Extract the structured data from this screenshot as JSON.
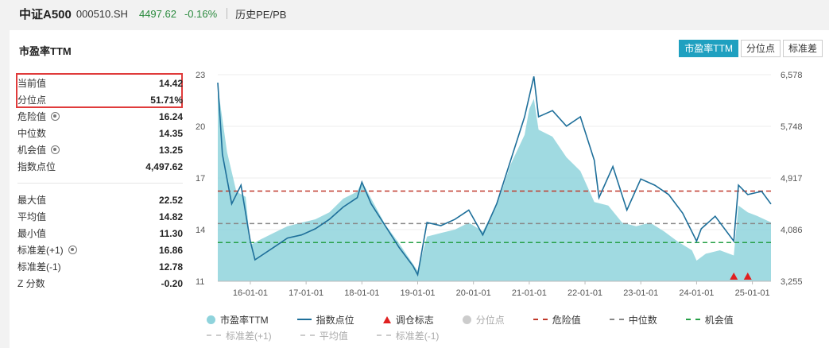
{
  "header": {
    "name": "中证A500",
    "code": "000510.SH",
    "price": "4497.62",
    "change": "-0.16%",
    "link": "历史PE/PB"
  },
  "card": {
    "title": "市盈率TTM",
    "tabs": [
      {
        "label": "市盈率TTM",
        "active": true
      },
      {
        "label": "分位点",
        "active": false
      },
      {
        "label": "标准差",
        "active": false
      }
    ]
  },
  "stats_top": [
    {
      "label": "当前值",
      "value": "14.42",
      "gear": false
    },
    {
      "label": "分位点",
      "value": "51.71%",
      "gear": false
    },
    {
      "label": "危险值",
      "value": "16.24",
      "gear": true
    },
    {
      "label": "中位数",
      "value": "14.35",
      "gear": false
    },
    {
      "label": "机会值",
      "value": "13.25",
      "gear": true
    },
    {
      "label": "指数点位",
      "value": "4,497.62",
      "gear": false
    }
  ],
  "stats_bottom": [
    {
      "label": "最大值",
      "value": "22.52",
      "gear": false
    },
    {
      "label": "平均值",
      "value": "14.82",
      "gear": false
    },
    {
      "label": "最小值",
      "value": "11.30",
      "gear": false
    },
    {
      "label": "标准差(+1)",
      "value": "16.86",
      "gear": true
    },
    {
      "label": "标准差(-1)",
      "value": "12.78",
      "gear": false
    },
    {
      "label": "Z 分数",
      "value": "-0.20",
      "gear": false
    }
  ],
  "colors": {
    "area": "#8fd3dc",
    "index_line": "#1e6f9a",
    "danger": "#c0392b",
    "median": "#888888",
    "opportunity": "#27a048",
    "marker": "#e02020"
  },
  "chart_data": {
    "type": "area",
    "x_ticks": [
      "16-01-01",
      "17-01-01",
      "18-01-01",
      "19-01-01",
      "20-01-01",
      "21-01-01",
      "22-01-01",
      "23-01-01",
      "24-01-01",
      "25-01-01"
    ],
    "y_left_ticks": [
      "23",
      "20",
      "17",
      "14",
      "11"
    ],
    "y_right_ticks": [
      "6,578",
      "5,748",
      "4,917",
      "4,086",
      "3,255"
    ],
    "y_left_range": [
      11,
      23
    ],
    "y_right_range": [
      3255,
      6578
    ],
    "x_range": [
      "2015-06",
      "2025-05"
    ],
    "danger_value": 16.24,
    "median_value": 14.35,
    "opportunity_value": 13.25,
    "pe_series": [
      [
        "2015-06",
        22.3
      ],
      [
        "2015-08",
        18.5
      ],
      [
        "2015-10",
        16.2
      ],
      [
        "2015-12",
        15.9
      ],
      [
        "2016-01",
        13.1
      ],
      [
        "2016-03",
        13.4
      ],
      [
        "2016-06",
        13.8
      ],
      [
        "2016-09",
        14.2
      ],
      [
        "2016-12",
        14.4
      ],
      [
        "2017-03",
        14.6
      ],
      [
        "2017-06",
        15.0
      ],
      [
        "2017-09",
        15.8
      ],
      [
        "2017-12",
        16.2
      ],
      [
        "2018-01",
        16.8
      ],
      [
        "2018-03",
        15.8
      ],
      [
        "2018-06",
        14.3
      ],
      [
        "2018-09",
        13.2
      ],
      [
        "2018-12",
        12.0
      ],
      [
        "2019-01",
        11.6
      ],
      [
        "2019-03",
        13.6
      ],
      [
        "2019-06",
        13.8
      ],
      [
        "2019-09",
        14.0
      ],
      [
        "2019-12",
        14.4
      ],
      [
        "2020-03",
        13.9
      ],
      [
        "2020-06",
        15.4
      ],
      [
        "2020-09",
        17.8
      ],
      [
        "2020-12",
        19.5
      ],
      [
        "2021-01",
        21.0
      ],
      [
        "2021-02",
        21.6
      ],
      [
        "2021-03",
        19.8
      ],
      [
        "2021-06",
        19.4
      ],
      [
        "2021-09",
        18.2
      ],
      [
        "2021-12",
        17.4
      ],
      [
        "2022-03",
        15.6
      ],
      [
        "2022-06",
        15.4
      ],
      [
        "2022-09",
        14.4
      ],
      [
        "2022-12",
        14.2
      ],
      [
        "2023-03",
        14.4
      ],
      [
        "2023-06",
        13.9
      ],
      [
        "2023-09",
        13.3
      ],
      [
        "2023-12",
        12.8
      ],
      [
        "2024-01",
        12.2
      ],
      [
        "2024-03",
        12.6
      ],
      [
        "2024-06",
        12.8
      ],
      [
        "2024-09",
        12.5
      ],
      [
        "2024-10",
        15.4
      ],
      [
        "2024-12",
        15.0
      ],
      [
        "2025-02",
        14.8
      ],
      [
        "2025-05",
        14.42
      ]
    ],
    "index_series": [
      [
        "2015-06",
        6450
      ],
      [
        "2015-07",
        5300
      ],
      [
        "2015-09",
        4500
      ],
      [
        "2015-11",
        4800
      ],
      [
        "2016-01",
        3900
      ],
      [
        "2016-02",
        3600
      ],
      [
        "2016-06",
        3800
      ],
      [
        "2016-09",
        3950
      ],
      [
        "2016-12",
        4000
      ],
      [
        "2017-03",
        4100
      ],
      [
        "2017-06",
        4250
      ],
      [
        "2017-09",
        4450
      ],
      [
        "2017-12",
        4600
      ],
      [
        "2018-01",
        4850
      ],
      [
        "2018-03",
        4500
      ],
      [
        "2018-06",
        4150
      ],
      [
        "2018-09",
        3800
      ],
      [
        "2018-12",
        3500
      ],
      [
        "2019-01",
        3360
      ],
      [
        "2019-03",
        4200
      ],
      [
        "2019-06",
        4150
      ],
      [
        "2019-09",
        4250
      ],
      [
        "2019-12",
        4400
      ],
      [
        "2020-03",
        4000
      ],
      [
        "2020-06",
        4500
      ],
      [
        "2020-09",
        5200
      ],
      [
        "2020-12",
        5900
      ],
      [
        "2021-02",
        6550
      ],
      [
        "2021-03",
        5900
      ],
      [
        "2021-06",
        6000
      ],
      [
        "2021-09",
        5750
      ],
      [
        "2021-12",
        5900
      ],
      [
        "2022-03",
        5200
      ],
      [
        "2022-04",
        4600
      ],
      [
        "2022-07",
        5100
      ],
      [
        "2022-10",
        4400
      ],
      [
        "2023-01",
        4900
      ],
      [
        "2023-04",
        4800
      ],
      [
        "2023-07",
        4650
      ],
      [
        "2023-10",
        4350
      ],
      [
        "2024-01",
        3900
      ],
      [
        "2024-02",
        4100
      ],
      [
        "2024-05",
        4300
      ],
      [
        "2024-09",
        3900
      ],
      [
        "2024-10",
        4800
      ],
      [
        "2024-12",
        4650
      ],
      [
        "2025-03",
        4700
      ],
      [
        "2025-05",
        4497.62
      ]
    ],
    "markers": [
      "2024-09",
      "2024-12"
    ]
  },
  "legend": {
    "row1": [
      {
        "label": "市盈率TTM",
        "kind": "dot",
        "color": "#8fd3dc"
      },
      {
        "label": "指数点位",
        "kind": "line",
        "color": "#1e6f9a"
      },
      {
        "label": "调仓标志",
        "kind": "tri",
        "color": "#e02020"
      },
      {
        "label": "分位点",
        "kind": "dot",
        "color": "#cccccc",
        "dim": true
      },
      {
        "label": "危险值",
        "kind": "dash",
        "color": "#c0392b"
      },
      {
        "label": "中位数",
        "kind": "dash",
        "color": "#888888"
      },
      {
        "label": "机会值",
        "kind": "dash",
        "color": "#27a048"
      }
    ],
    "row2": [
      {
        "label": "标准差(+1)",
        "kind": "dash",
        "color": "#cccccc",
        "dim": true
      },
      {
        "label": "平均值",
        "kind": "dash",
        "color": "#cccccc",
        "dim": true
      },
      {
        "label": "标准差(-1)",
        "kind": "dash",
        "color": "#cccccc",
        "dim": true
      }
    ]
  }
}
